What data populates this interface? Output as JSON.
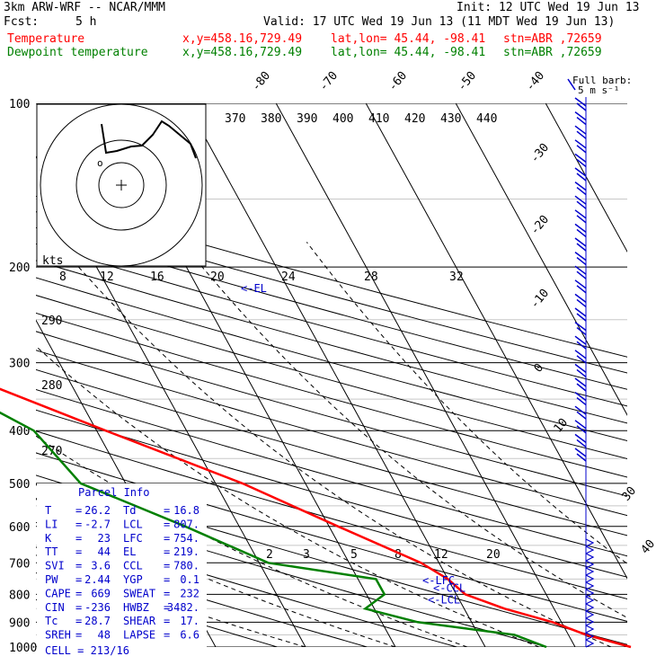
{
  "header": {
    "title": "3km ARW-WRF -- NCAR/MMM",
    "init": "Init: 12 UTC Wed 19 Jun 13",
    "fcst_label": "Fcst:",
    "fcst_value": "5 h",
    "valid": "Valid: 17 UTC Wed 19 Jun 13 (11 MDT Wed 19 Jun 13)",
    "temp_label": "Temperature",
    "dew_label": "Dewpoint temperature",
    "xy": "x,y=458.16,729.49",
    "latlon": "lat,lon= 45.44, -98.41",
    "stn": "stn=ABR ,72659"
  },
  "colors": {
    "temperature": "#ff0000",
    "dewpoint": "#008000",
    "parcel": "#0000cc",
    "barbs": "#0000cc"
  },
  "full_barb_label": "Full barb:",
  "full_barb_value": "5 m s⁻¹",
  "hodo_label": "kts",
  "hodo_speed_ticks": [
    "8",
    "12",
    "16",
    "20",
    "24",
    "28",
    "32"
  ],
  "hodo_dir_ticks": [
    "290",
    "280",
    "270"
  ],
  "theta_labels": [
    "370",
    "380",
    "390",
    "400",
    "410",
    "420",
    "430",
    "440"
  ],
  "mixing_ratio_labels": [
    "2",
    "3",
    "5",
    "8",
    "12",
    "20"
  ],
  "parcel_labels": {
    "el": "<-EL",
    "lfc": "<-LFC",
    "ccl": "<-CCL",
    "lcl": "<-LCL"
  },
  "parcel_info": {
    "title": "Parcel Info",
    "rows": [
      [
        "T  ",
        "26.2",
        "Td ",
        "16.8"
      ],
      [
        "LI ",
        "-2.7",
        "LCL",
        "807."
      ],
      [
        "K  ",
        "23",
        "LFC",
        "754."
      ],
      [
        "TT ",
        "44",
        "EL ",
        "219."
      ],
      [
        "SVI",
        "3.6",
        "CCL",
        "780."
      ],
      [
        "PW ",
        "2.44",
        "YGP",
        "0.1"
      ],
      [
        "CAPE",
        "669",
        "SWEAT",
        "232"
      ],
      [
        "CIN",
        "-236",
        "HWBZ",
        "3482."
      ],
      [
        "Tc ",
        "28.7",
        "SHEAR",
        "17."
      ],
      [
        "SREH",
        "48",
        "LAPSE",
        "6.6"
      ]
    ],
    "cell": "CELL = 213/16"
  },
  "chart_data": {
    "type": "line",
    "chart_kind": "skew-T log-P sounding",
    "y_axis": {
      "label": "Pressure (hPa)",
      "scale": "log",
      "ticks": [
        100,
        200,
        300,
        400,
        500,
        600,
        700,
        800,
        900,
        1000
      ]
    },
    "temperature_axis_labels": [
      -80,
      -70,
      -60,
      -50,
      -40,
      -30,
      -20,
      -10,
      0,
      10,
      20,
      30,
      40
    ],
    "series": [
      {
        "name": "Temperature",
        "color": "#ff0000",
        "points": [
          [
            1000,
            26.2
          ],
          [
            950,
            22
          ],
          [
            900,
            19
          ],
          [
            850,
            14.5
          ],
          [
            800,
            11
          ],
          [
            750,
            10
          ],
          [
            700,
            8
          ],
          [
            600,
            1
          ],
          [
            500,
            -7
          ],
          [
            400,
            -19
          ],
          [
            300,
            -34
          ],
          [
            250,
            -45
          ],
          [
            200,
            -56
          ],
          [
            180,
            -60
          ],
          [
            150,
            -59
          ],
          [
            120,
            -60
          ],
          [
            100,
            -62
          ]
        ]
      },
      {
        "name": "Dewpoint temperature",
        "color": "#008000",
        "points": [
          [
            1000,
            16.8
          ],
          [
            950,
            14
          ],
          [
            900,
            4
          ],
          [
            850,
            -1
          ],
          [
            800,
            2
          ],
          [
            750,
            2
          ],
          [
            700,
            -9
          ],
          [
            600,
            -16
          ],
          [
            500,
            -25
          ],
          [
            400,
            -27
          ],
          [
            300,
            -37
          ],
          [
            250,
            -50
          ],
          [
            200,
            -58
          ],
          [
            150,
            -75
          ],
          [
            120,
            -80
          ],
          [
            100,
            -72
          ]
        ]
      }
    ],
    "levels": {
      "LCL": 807,
      "LFC": 754,
      "CCL": 780,
      "EL": 219
    }
  }
}
